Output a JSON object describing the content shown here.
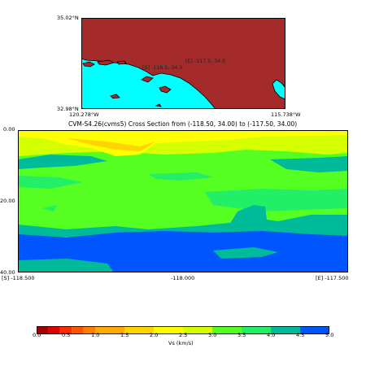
{
  "map": {
    "lat_top": "35.02°N",
    "lat_bottom": "32.98°N",
    "lon_left": "120.278°W",
    "lon_right": "115.738°W",
    "start_label": "[S] -118.5, 34.0",
    "end_label": "[E] -117.5, 34.0",
    "land_color": "#a52a2a",
    "ocean_color": "#00ffff"
  },
  "chart_data": {
    "type": "heatmap",
    "title": "CVM-S4.26(cvms5) Cross Section from (-118.50, 34.00) to (-117.50, 34.00)",
    "x_ticks": [
      "[S] -118.500",
      "-118.000",
      "[E] -117.500"
    ],
    "y_ticks": [
      "0.00",
      "20.00",
      "40.00"
    ],
    "xlim": [
      -118.5,
      -117.5
    ],
    "ylim": [
      40,
      0
    ],
    "colorbar": {
      "label": "Vs (km/s)",
      "ticks": [
        "0.0",
        "0.5",
        "1.0",
        "1.5",
        "2.0",
        "2.5",
        "3.0",
        "3.5",
        "4.0",
        "4.5",
        "5.0"
      ],
      "bins": [
        {
          "from": 0.0,
          "to": 0.2,
          "color": "#a80000"
        },
        {
          "from": 0.2,
          "to": 0.4,
          "color": "#e00000"
        },
        {
          "from": 0.4,
          "to": 0.6,
          "color": "#ff2a00"
        },
        {
          "from": 0.6,
          "to": 0.8,
          "color": "#ff5500"
        },
        {
          "from": 0.8,
          "to": 1.0,
          "color": "#ff8000"
        },
        {
          "from": 1.0,
          "to": 1.5,
          "color": "#ffaa00"
        },
        {
          "from": 1.5,
          "to": 2.0,
          "color": "#ffd400"
        },
        {
          "from": 2.0,
          "to": 2.5,
          "color": "#ffff00"
        },
        {
          "from": 2.5,
          "to": 3.0,
          "color": "#d4ff00"
        },
        {
          "from": 3.0,
          "to": 3.5,
          "color": "#55ff22"
        },
        {
          "from": 3.5,
          "to": 4.0,
          "color": "#22ee66"
        },
        {
          "from": 4.0,
          "to": 4.5,
          "color": "#00bb99"
        },
        {
          "from": 4.5,
          "to": 5.0,
          "color": "#0055ff"
        }
      ]
    }
  }
}
